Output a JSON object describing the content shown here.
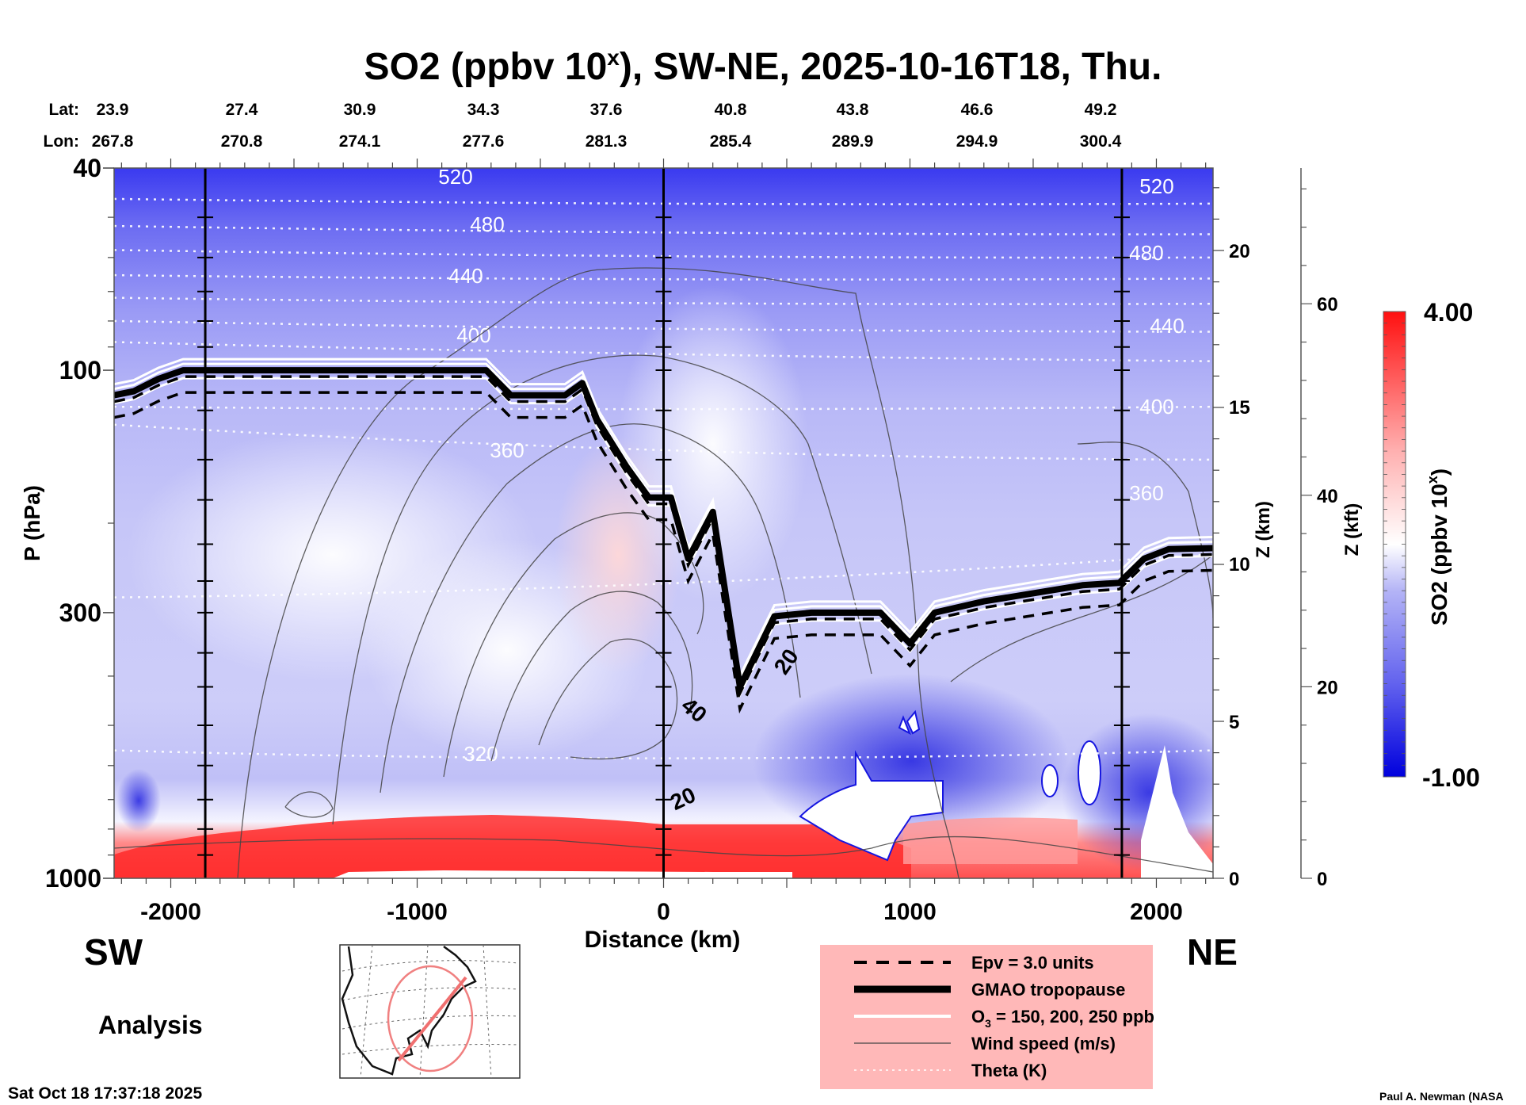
{
  "chart_data": {
    "type": "heatmap",
    "title": "SO2 (ppbv 10",
    "title_superscript": "x",
    "title_suffix": "), SW-NE, 2025-10-16T18, Thu.",
    "xlabel": "Distance (km)",
    "ylabel": "P (hPa)",
    "y2label": "Z (km)",
    "y3label": "Z (kft)",
    "x_range": [
      -2230,
      2230
    ],
    "x_ticks": [
      -2000,
      -1000,
      0,
      1000,
      2000
    ],
    "y_range_hpa": [
      40,
      1000
    ],
    "y_scale": "log",
    "y_ticks_hpa": [
      40,
      100,
      300,
      1000
    ],
    "z_km_ticks": [
      0,
      5,
      10,
      15,
      20
    ],
    "z_kft_ticks": [
      0,
      20,
      40,
      60
    ],
    "vertical_markers_km": [
      -1860,
      0,
      1860
    ],
    "lat_label": "Lat:",
    "lon_label": "Lon:",
    "lat": [
      "23.9",
      "27.4",
      "30.9",
      "34.3",
      "37.6",
      "40.8",
      "43.8",
      "46.6",
      "49.2"
    ],
    "lon": [
      "267.8",
      "270.8",
      "274.1",
      "277.6",
      "281.3",
      "285.4",
      "289.9",
      "294.9",
      "300.4"
    ],
    "colorbar": {
      "label": "SO2 (ppbv 10",
      "label_superscript": "x",
      "label_suffix": ")",
      "max_label": "4.00",
      "min_label": "-1.00",
      "range": [
        -1.0,
        4.0
      ],
      "low_color": "#0000e6",
      "mid_color": "#ffffff",
      "high_color": "#ff1a1a"
    },
    "theta_labels_K": [
      "520",
      "480",
      "440",
      "400",
      "360",
      "320"
    ],
    "theta_right_labels_K": [
      "520",
      "480",
      "440",
      "400",
      "360"
    ],
    "theta_levels": [
      {
        "K": 520,
        "p_left": 46,
        "p_right": 47
      },
      {
        "K": 500,
        "p_left": 52,
        "p_right": 54
      },
      {
        "K": 480,
        "p_left": 58,
        "p_right": 60
      },
      {
        "K": 460,
        "p_left": 65,
        "p_right": 66
      },
      {
        "K": 440,
        "p_left": 72,
        "p_right": 74
      },
      {
        "K": 420,
        "p_left": 80,
        "p_right": 84
      },
      {
        "K": 400,
        "p_left": 88,
        "p_right": 96
      },
      {
        "K": 380,
        "p_left": 118,
        "p_right": 118
      },
      {
        "K": 360,
        "p_left": 128,
        "p_right": 150
      },
      {
        "K": 340,
        "p_left": 280,
        "p_right": 230
      },
      {
        "K": 320,
        "p_left": 560,
        "p_right": 560
      }
    ],
    "wind_labels_ms": [
      "20",
      "40",
      "20"
    ],
    "tropopause_hpa": [
      {
        "x": -2230,
        "p": 112
      },
      {
        "x": -2150,
        "p": 110
      },
      {
        "x": -2050,
        "p": 104
      },
      {
        "x": -1950,
        "p": 100
      },
      {
        "x": -1000,
        "p": 100
      },
      {
        "x": -720,
        "p": 100
      },
      {
        "x": -620,
        "p": 112
      },
      {
        "x": -400,
        "p": 112
      },
      {
        "x": -330,
        "p": 106
      },
      {
        "x": -270,
        "p": 125
      },
      {
        "x": -150,
        "p": 155
      },
      {
        "x": -60,
        "p": 178
      },
      {
        "x": 30,
        "p": 178
      },
      {
        "x": 100,
        "p": 235
      },
      {
        "x": 200,
        "p": 190
      },
      {
        "x": 310,
        "p": 420
      },
      {
        "x": 450,
        "p": 305
      },
      {
        "x": 600,
        "p": 300
      },
      {
        "x": 880,
        "p": 300
      },
      {
        "x": 1000,
        "p": 345
      },
      {
        "x": 1100,
        "p": 300
      },
      {
        "x": 1300,
        "p": 285
      },
      {
        "x": 1700,
        "p": 265
      },
      {
        "x": 1850,
        "p": 262
      },
      {
        "x": 1950,
        "p": 235
      },
      {
        "x": 2050,
        "p": 225
      },
      {
        "x": 2230,
        "p": 224
      }
    ],
    "legend": [
      {
        "style": "dashed",
        "label": "Epv = 3.0 units"
      },
      {
        "style": "thick",
        "label": "GMAO tropopause"
      },
      {
        "style": "white",
        "label": "O3 = 150, 200, 250 ppb",
        "label_main": "O",
        "label_sub": "3",
        "label_rest": " = 150, 200, 250 ppb"
      },
      {
        "style": "thin",
        "label": "Wind speed (m/s)"
      },
      {
        "style": "dotted",
        "label": "Theta (K)"
      }
    ],
    "legend_bg": "#ffb8b8"
  },
  "direction_left": "SW",
  "direction_right": "NE",
  "analysis_label": "Analysis",
  "timestamp": "Sat Oct 18 17:37:18 2025",
  "credit": "Paul A. Newman (NASA"
}
